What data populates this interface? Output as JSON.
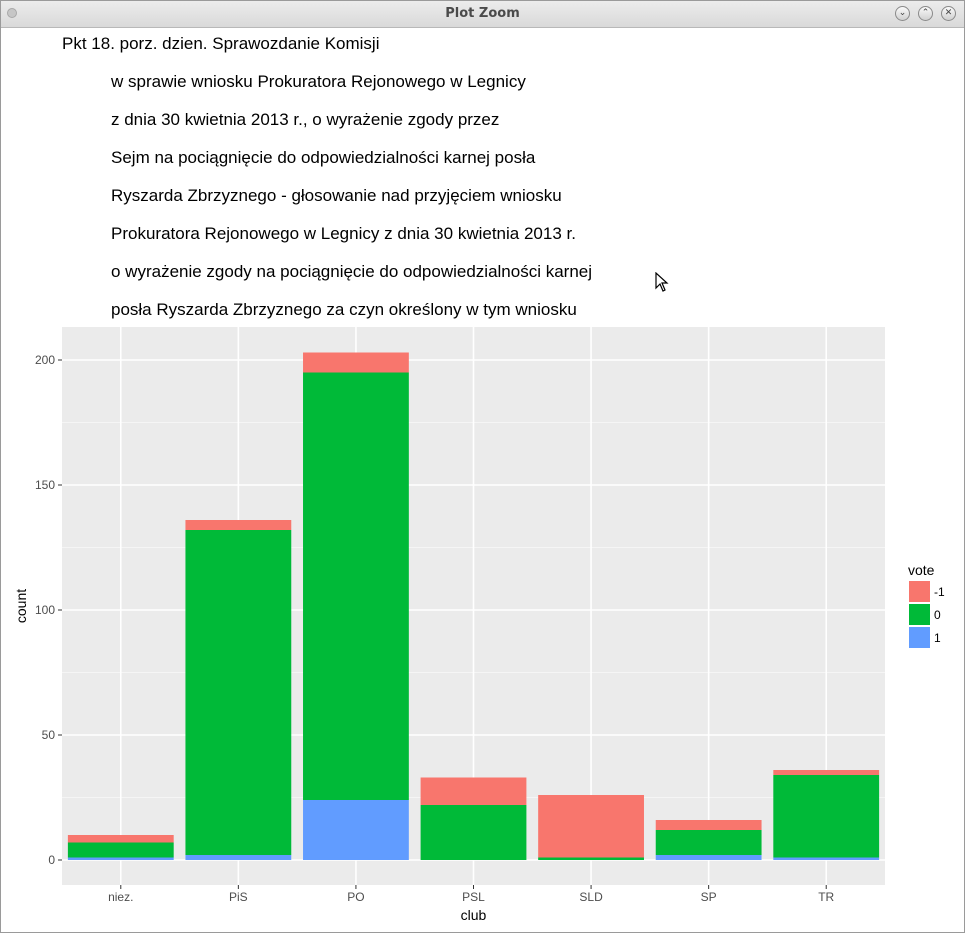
{
  "window": {
    "title": "Plot Zoom",
    "buttons": [
      "minimize",
      "maximize",
      "close"
    ]
  },
  "colors": {
    "panel_bg": "#EBEBEB",
    "grid": "#FFFFFF",
    "vote_neg1": "#F8766D",
    "vote_0": "#00BA38",
    "vote_1": "#619CFF"
  },
  "chart_data": {
    "type": "bar",
    "stacked": true,
    "title_lines": [
      "Pkt 18. porz. dzien. Sprawozdanie Komisji",
      "w sprawie wniosku Prokuratora Rejonowego w Legnicy",
      "z dnia 30 kwietnia 2013 r., o wyrażenie zgody przez",
      "Sejm na pociągnięcie do odpowiedzialności karnej posła",
      "Ryszarda Zbrzyznego - głosowanie nad przyjęciem wniosku",
      "Prokuratora Rejonowego w Legnicy z dnia 30 kwietnia 2013 r.",
      "o wyrażenie zgody na pociągnięcie do odpowiedzialności karnej",
      "posła Ryszarda Zbrzyznego za czyn określony w tym wniosku"
    ],
    "xlabel": "club",
    "ylabel": "count",
    "ylim": [
      -5,
      213
    ],
    "yticks": [
      0,
      50,
      100,
      150,
      200
    ],
    "grid": true,
    "legend_title": "vote",
    "legend_position": "right",
    "categories": [
      "niez.",
      "PiS",
      "PO",
      "PSL",
      "SLD",
      "SP",
      "TR"
    ],
    "series": [
      {
        "name": "1",
        "color": "#619CFF",
        "values": [
          1,
          2,
          24,
          0,
          0,
          2,
          1
        ]
      },
      {
        "name": "0",
        "color": "#00BA38",
        "values": [
          6,
          130,
          171,
          22,
          1,
          10,
          33
        ]
      },
      {
        "name": "-1",
        "color": "#F8766D",
        "values": [
          3,
          4,
          8,
          11,
          25,
          4,
          2
        ]
      }
    ],
    "legend_order": [
      "-1",
      "0",
      "1"
    ]
  }
}
